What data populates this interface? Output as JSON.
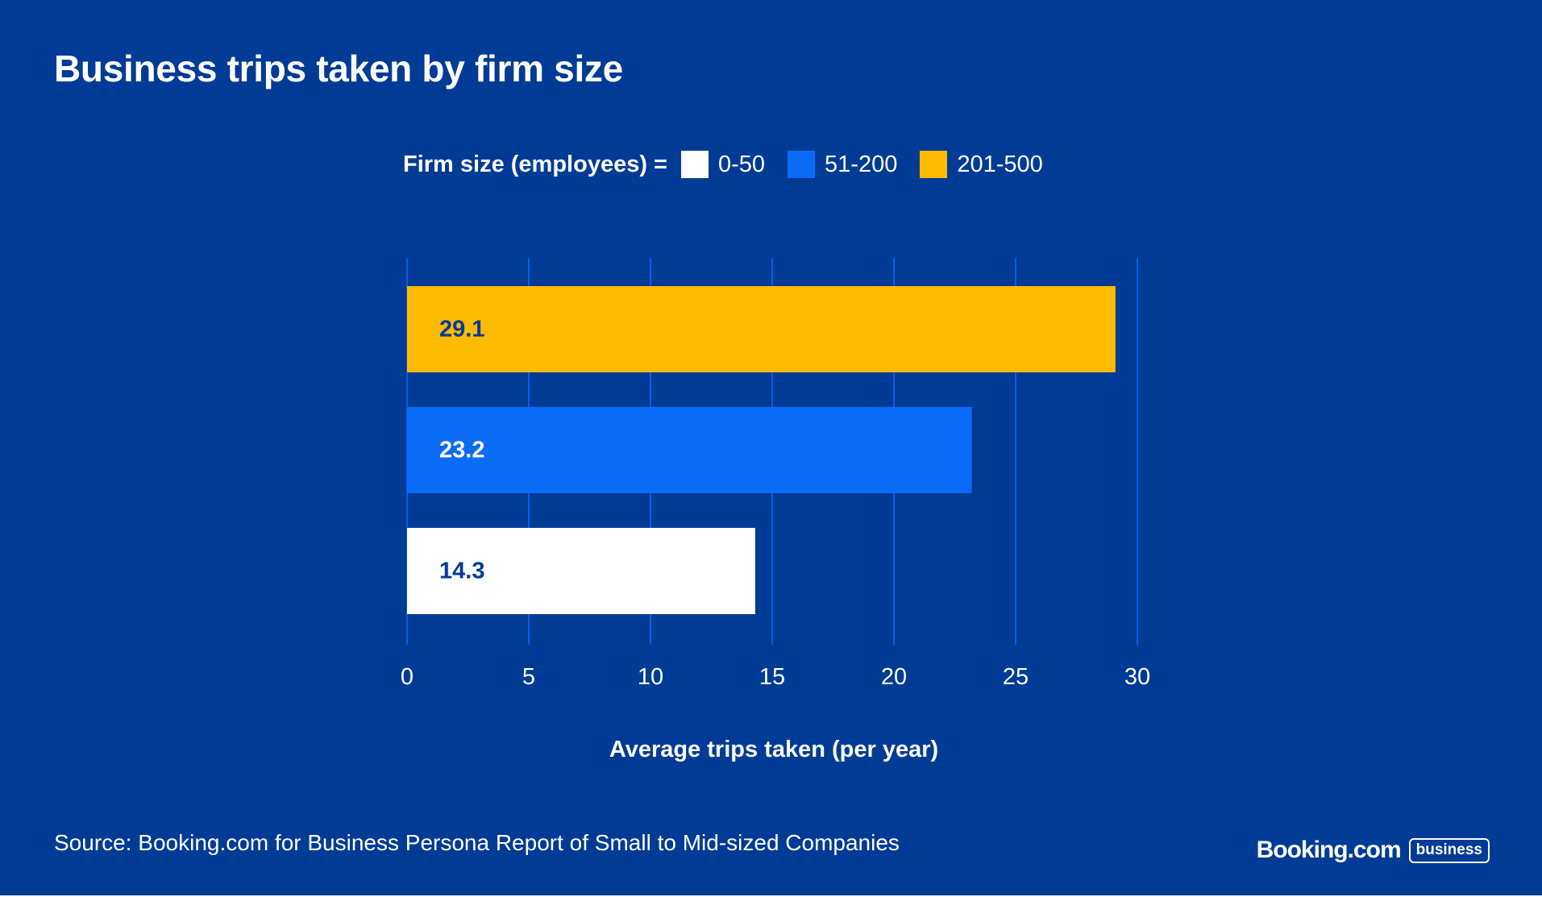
{
  "brand": {
    "name": "Booking.com",
    "badge": "business"
  },
  "source": "Source: Booking.com for Business Persona Report of Small to Mid-sized Companies",
  "legend": {
    "title": "Firm size (employees) ="
  },
  "colors": {
    "background": "#003b95",
    "gridline": "#0a5ce8",
    "white": "#ffffff",
    "blue": "#0a6cf5",
    "yellow": "#febb02",
    "dark_label": "#003b95"
  },
  "chart_data": {
    "type": "bar",
    "orientation": "horizontal",
    "title": "Business trips taken by firm size",
    "xlabel": "Average trips taken (per year)",
    "ylabel": "",
    "xlim": [
      0,
      30
    ],
    "xticks": [
      0,
      5,
      10,
      15,
      20,
      25,
      30
    ],
    "grid": true,
    "legend_position": "top-center",
    "series": [
      {
        "name": "201-500",
        "value": 29.1,
        "label": "29.1",
        "color": "#febb02"
      },
      {
        "name": "51-200",
        "value": 23.2,
        "label": "23.2",
        "color": "#0a6cf5"
      },
      {
        "name": "0-50",
        "value": 14.3,
        "label": "14.3",
        "color": "#ffffff"
      }
    ],
    "legend_order": [
      "0-50",
      "51-200",
      "201-500"
    ]
  }
}
